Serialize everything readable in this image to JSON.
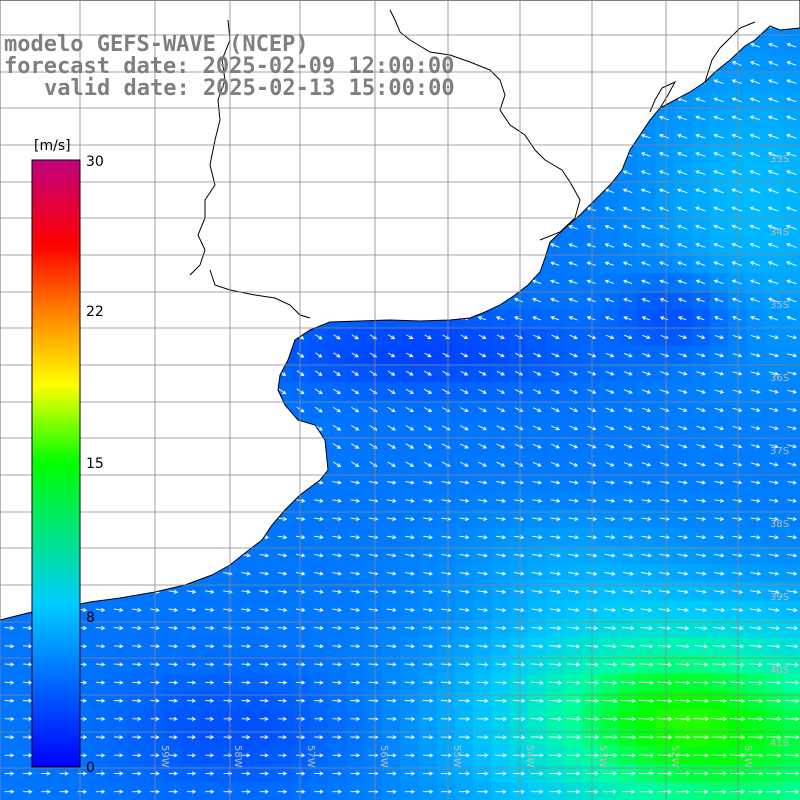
{
  "title": {
    "line1": "modelo GEFS-WAVE (NCEP)",
    "line2": "forecast date: 2025-02-09 12:00:00",
    "line3": "valid date: 2025-02-13 15:00:00"
  },
  "colorbar": {
    "unit_label": "[m/s]",
    "tick_labels": [
      "30",
      "22",
      "15",
      "8",
      "0"
    ],
    "tick_values": [
      30,
      22,
      15,
      8,
      0
    ],
    "min": 0,
    "max": 30,
    "colors": [
      "#0000ff",
      "#00c8ff",
      "#00ff00",
      "#ffff00",
      "#ff8000",
      "#ff0000",
      "#c00080"
    ]
  },
  "map": {
    "lat_labels": [
      "33S",
      "34S",
      "35S",
      "36S",
      "37S",
      "38S",
      "39S",
      "40S",
      "41S"
    ],
    "lon_labels": [
      "59W",
      "58W",
      "57W",
      "56W",
      "55W",
      "54W",
      "53W",
      "52W",
      "51W"
    ],
    "land_color": "#ffffff",
    "coast_color": "#000000",
    "grid_color": "#888888"
  }
}
